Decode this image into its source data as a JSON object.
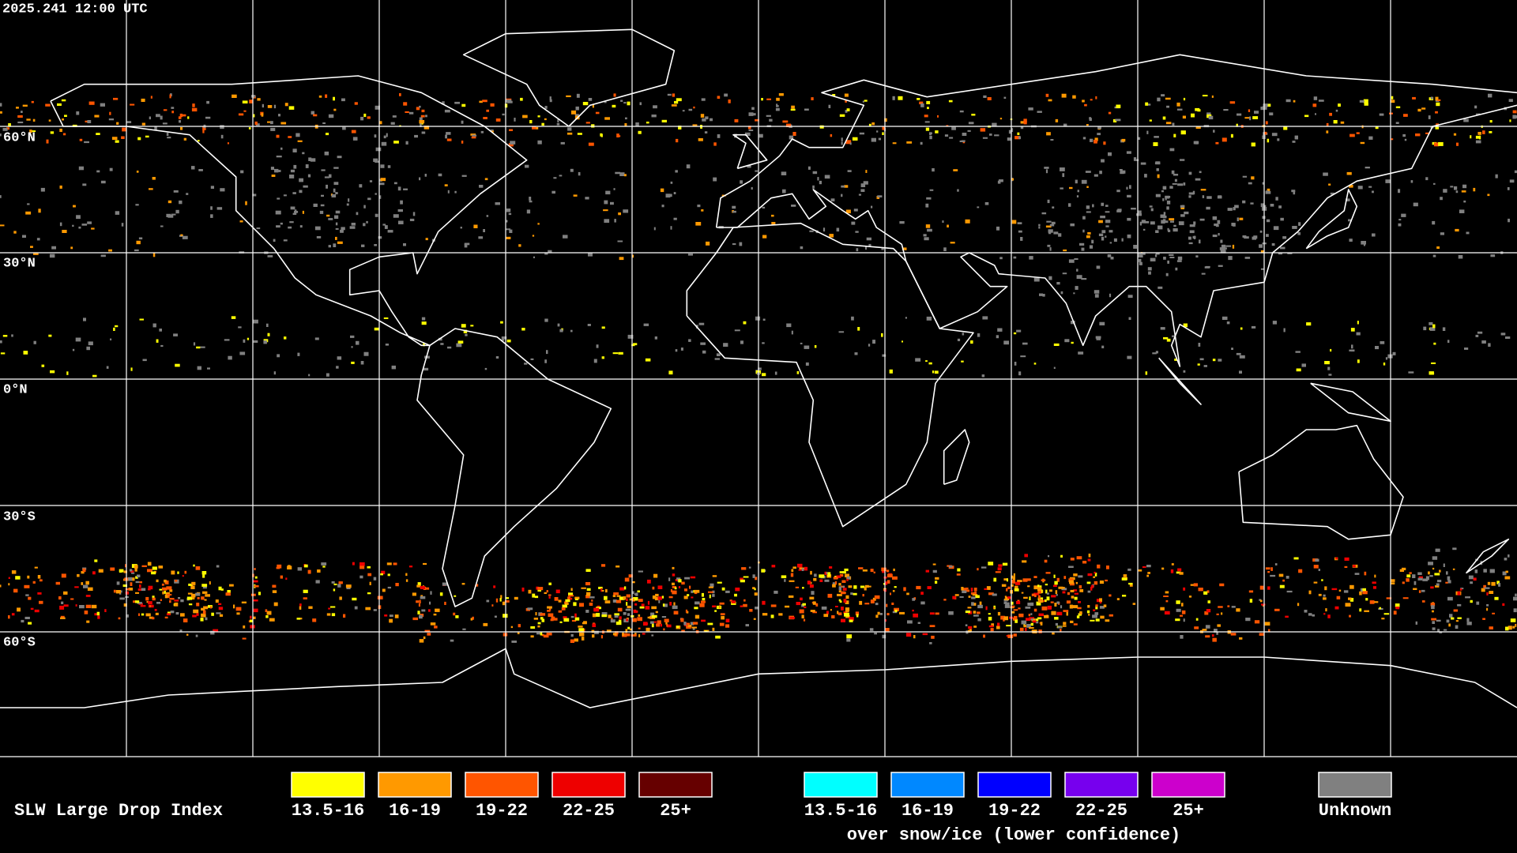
{
  "header": {
    "timestamp": "2025.241 12:00 UTC"
  },
  "latitude_labels": [
    "60°N",
    "30°N",
    "0°N",
    "30°S",
    "60°S"
  ],
  "legend": {
    "title": "SLW Large Drop Index",
    "items": [
      {
        "label": "13.5-16",
        "color": "#ffff00"
      },
      {
        "label": "16-19",
        "color": "#ff9900"
      },
      {
        "label": "19-22",
        "color": "#ff5500"
      },
      {
        "label": "22-25",
        "color": "#ee0000"
      },
      {
        "label": "25+",
        "color": "#660000"
      }
    ],
    "snow_ice_items": [
      {
        "label": "13.5-16",
        "color": "#00ffff"
      },
      {
        "label": "16-19",
        "color": "#0088ff"
      },
      {
        "label": "19-22",
        "color": "#0000ff"
      },
      {
        "label": "22-25",
        "color": "#7700ee"
      },
      {
        "label": "25+",
        "color": "#cc00cc"
      }
    ],
    "snow_ice_caption": "over snow/ice (lower confidence)",
    "unknown": {
      "label": "Unknown",
      "color": "#808080"
    }
  }
}
